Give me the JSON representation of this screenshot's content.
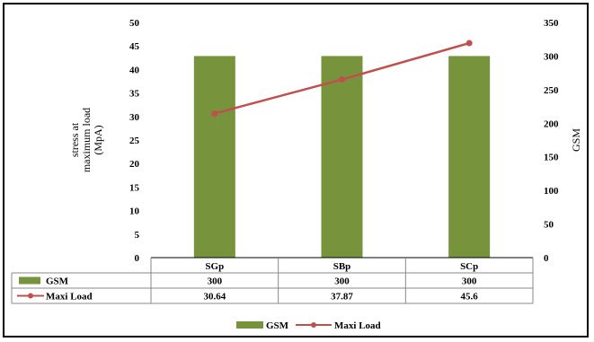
{
  "chart_data": {
    "type": "bar",
    "categories": [
      "SGp",
      "SBp",
      "SCp"
    ],
    "series": [
      {
        "name": "GSM",
        "kind": "bar",
        "axis": "right",
        "color": "#77933c",
        "values": [
          300,
          300,
          300
        ]
      },
      {
        "name": "Maxi Load",
        "kind": "line",
        "axis": "left",
        "color": "#c0504d",
        "values": [
          30.64,
          37.87,
          45.6
        ]
      }
    ],
    "table_values": {
      "GSM": [
        "300",
        "300",
        "300"
      ],
      "Maxi Load": [
        "30.64",
        "37.87",
        "45.6"
      ]
    },
    "ylabel": [
      "stress at",
      "maximum load",
      "(MpA)"
    ],
    "y2label": "GSM",
    "ylim": [
      0,
      50
    ],
    "y2lim": [
      0,
      350
    ],
    "yticks": [
      "0",
      "5",
      "10",
      "15",
      "20",
      "25",
      "30",
      "35",
      "40",
      "45",
      "50"
    ],
    "y2ticks": [
      "0",
      "50",
      "100",
      "150",
      "200",
      "250",
      "300",
      "350"
    ],
    "grid": false,
    "legend": "bottom"
  }
}
